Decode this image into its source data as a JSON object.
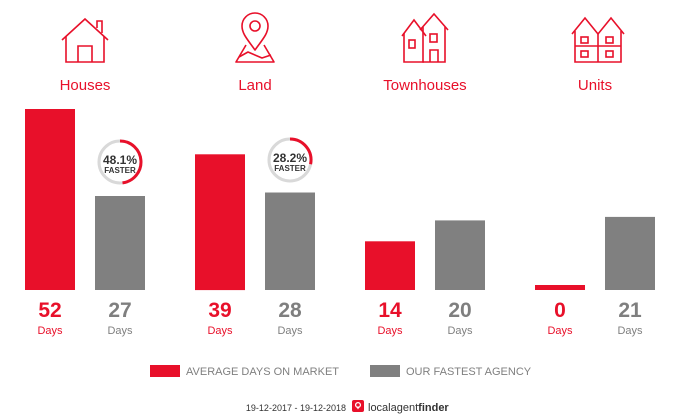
{
  "chart_data": {
    "type": "bar",
    "categories": [
      "Houses",
      "Land",
      "Townhouses",
      "Units"
    ],
    "series": [
      {
        "name": "AVERAGE DAYS ON MARKET",
        "values": [
          52,
          39,
          14,
          0
        ],
        "color": "#e8102a"
      },
      {
        "name": "OUR FASTEST AGENCY",
        "values": [
          27,
          28,
          20,
          21
        ],
        "color": "#808080"
      }
    ],
    "value_unit": "Days",
    "faster": [
      {
        "percent": "48.1%",
        "label": "FASTER",
        "fraction": 0.481
      },
      {
        "percent": "28.2%",
        "label": "FASTER",
        "fraction": 0.282
      },
      null,
      null
    ],
    "icons": [
      "house-icon",
      "map-pin-icon",
      "townhouse-icon",
      "units-icon"
    ],
    "ylim": [
      0,
      52
    ],
    "legend_position": "bottom"
  },
  "footer": {
    "date_range": "19-12-2017 - 19-12-2018",
    "brand_local": "localagent",
    "brand_finder": "finder"
  }
}
